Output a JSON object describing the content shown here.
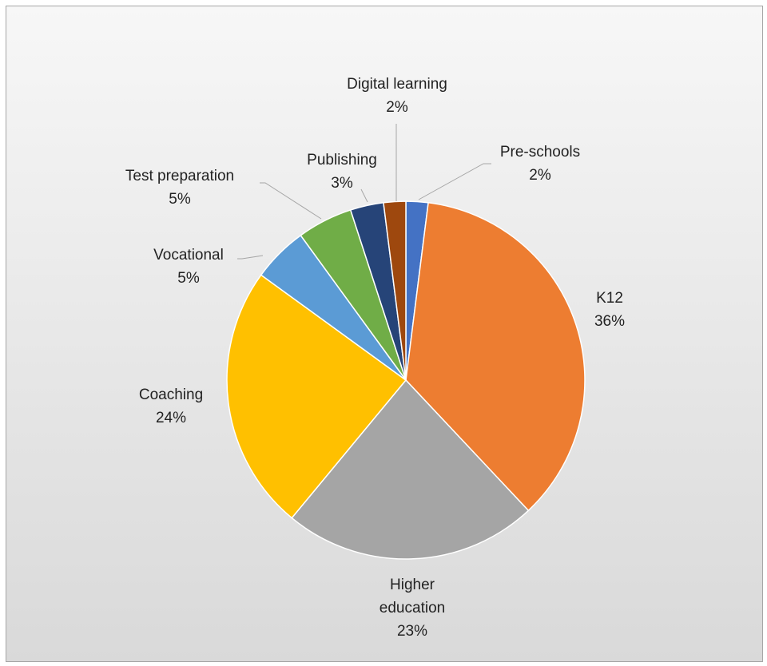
{
  "chart_data": {
    "type": "pie",
    "title": "",
    "slices": [
      {
        "label": "Pre-schools",
        "value": 2,
        "pct": "2%",
        "color": "#4472C4"
      },
      {
        "label": "K12",
        "value": 36,
        "pct": "36%",
        "color": "#ED7D31"
      },
      {
        "label": "Higher education",
        "value": 23,
        "pct": "23%",
        "color": "#A5A5A5"
      },
      {
        "label": "Coaching",
        "value": 24,
        "pct": "24%",
        "color": "#FFC000"
      },
      {
        "label": "Vocational",
        "value": 5,
        "pct": "5%",
        "color": "#5B9BD5"
      },
      {
        "label": "Test preparation",
        "value": 5,
        "pct": "5%",
        "color": "#70AD47"
      },
      {
        "label": "Publishing",
        "value": 3,
        "pct": "3%",
        "color": "#264478"
      },
      {
        "label": "Digital learning",
        "value": 2,
        "pct": "2%",
        "color": "#9E480E"
      }
    ],
    "start_angle": "12 o'clock",
    "direction": "clockwise",
    "legend": "none",
    "data_labels": "category name and percentage"
  },
  "colors": {
    "background_gradient_top": "#F7F7F7",
    "background_gradient_bottom": "#D9D9D9",
    "border": "#A6A6A6",
    "leader_line": "#A6A6A6",
    "slice_outline": "#FFFFFF",
    "label_text": "#222222"
  }
}
